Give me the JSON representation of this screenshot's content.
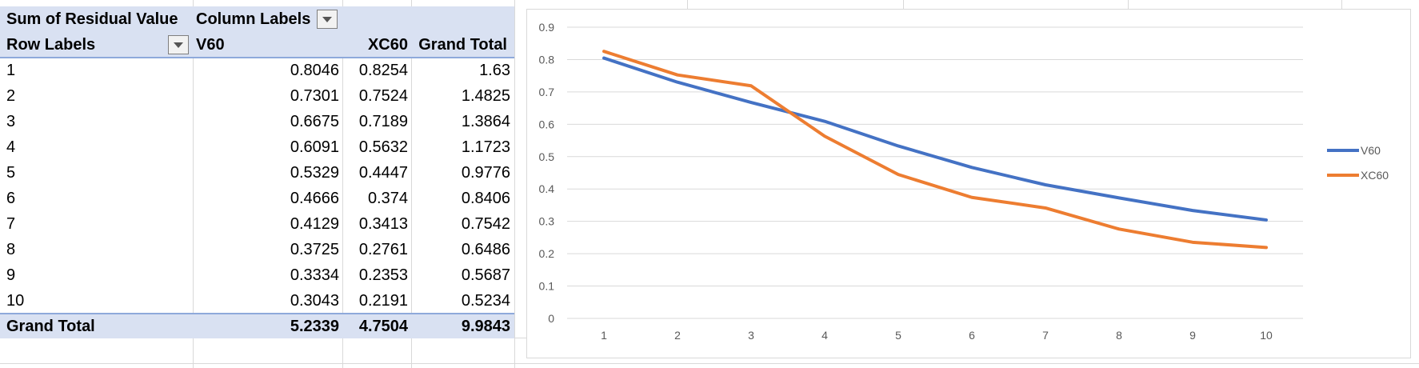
{
  "pivot": {
    "corner_label": "Sum of Residual Value",
    "column_labels": "Column Labels",
    "row_labels": "Row Labels",
    "columns": [
      "V60",
      "XC60",
      "Grand Total"
    ],
    "rows": [
      {
        "label": "1",
        "v60": "0.8046",
        "xc60": "0.8254",
        "total": "1.63"
      },
      {
        "label": "2",
        "v60": "0.7301",
        "xc60": "0.7524",
        "total": "1.4825"
      },
      {
        "label": "3",
        "v60": "0.6675",
        "xc60": "0.7189",
        "total": "1.3864"
      },
      {
        "label": "4",
        "v60": "0.6091",
        "xc60": "0.5632",
        "total": "1.1723"
      },
      {
        "label": "5",
        "v60": "0.5329",
        "xc60": "0.4447",
        "total": "0.9776"
      },
      {
        "label": "6",
        "v60": "0.4666",
        "xc60": "0.374",
        "total": "0.8406"
      },
      {
        "label": "7",
        "v60": "0.4129",
        "xc60": "0.3413",
        "total": "0.7542"
      },
      {
        "label": "8",
        "v60": "0.3725",
        "xc60": "0.2761",
        "total": "0.6486"
      },
      {
        "label": "9",
        "v60": "0.3334",
        "xc60": "0.2353",
        "total": "0.5687"
      },
      {
        "label": "10",
        "v60": "0.3043",
        "xc60": "0.2191",
        "total": "0.5234"
      }
    ],
    "grand_total": {
      "label": "Grand Total",
      "v60": "5.2339",
      "xc60": "4.7504",
      "total": "9.9843"
    }
  },
  "colors": {
    "header_bg": "#d9e1f2",
    "series_v60": "#4472c4",
    "series_xc60": "#ed7d31",
    "gridline": "#d9d9d9"
  },
  "chart_data": {
    "type": "line",
    "x": [
      1,
      2,
      3,
      4,
      5,
      6,
      7,
      8,
      9,
      10
    ],
    "x_tick_labels": [
      "1",
      "2",
      "3",
      "4",
      "5",
      "6",
      "7",
      "8",
      "9",
      "10"
    ],
    "y_tick_labels": [
      "0",
      "0.1",
      "0.2",
      "0.3",
      "0.4",
      "0.5",
      "0.6",
      "0.7",
      "0.8",
      "0.9"
    ],
    "ylim": [
      0,
      0.9
    ],
    "grid": true,
    "legend": "right",
    "series": [
      {
        "name": "V60",
        "values": [
          0.8046,
          0.7301,
          0.6675,
          0.6091,
          0.5329,
          0.4666,
          0.4129,
          0.3725,
          0.3334,
          0.3043
        ]
      },
      {
        "name": "XC60",
        "values": [
          0.8254,
          0.7524,
          0.7189,
          0.5632,
          0.4447,
          0.374,
          0.3413,
          0.2761,
          0.2353,
          0.2191
        ]
      }
    ]
  }
}
